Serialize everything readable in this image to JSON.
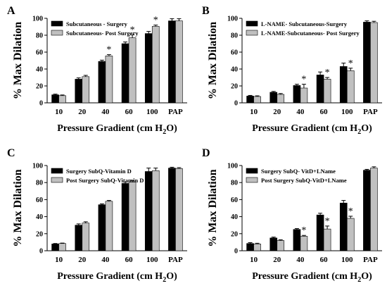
{
  "chart_data": [
    {
      "panel": "A",
      "type": "bar",
      "categories": [
        "10",
        "20",
        "40",
        "60",
        "100",
        "PAP"
      ],
      "xlabel_main": "Pressure Gradient (cm H",
      "xlabel_sub": "2",
      "xlabel_end": "O)",
      "ylabel": "% Max Dilation",
      "ylim": [
        0,
        100
      ],
      "yticks": [
        "0",
        "20",
        "40",
        "60",
        "80",
        "100"
      ],
      "series": [
        {
          "name": "Subcutaneous - Surgery",
          "values": [
            9.5,
            28,
            49,
            70,
            82,
            97
          ],
          "errors": [
            0.8,
            1.5,
            1.5,
            2,
            2.5,
            2.5
          ]
        },
        {
          "name": "Subcutaneous- Post Surgery",
          "values": [
            8.5,
            31,
            55.5,
            77,
            90.5,
            97
          ],
          "errors": [
            0.8,
            1.5,
            1.5,
            3.5,
            1.5,
            2.5
          ]
        }
      ],
      "annotations": [
        "",
        "",
        "*",
        "*",
        "*",
        ""
      ],
      "legend": "top-left"
    },
    {
      "panel": "B",
      "type": "bar",
      "categories": [
        "10",
        "20",
        "40",
        "60",
        "100",
        "PAP"
      ],
      "xlabel_main": "Pressure Gradient (cm H",
      "xlabel_sub": "2",
      "xlabel_end": "O)",
      "ylabel": "% Max Dilation",
      "ylim": [
        0,
        100
      ],
      "yticks": [
        "0",
        "20",
        "40",
        "60",
        "80",
        "100"
      ],
      "series": [
        {
          "name": "L-NAME- Subcutaneous-Surgery",
          "values": [
            8,
            12.5,
            20.5,
            33,
            43,
            95.5
          ],
          "errors": [
            0.8,
            1,
            1.5,
            3.5,
            4,
            1.5
          ]
        },
        {
          "name": "L-NAME-Subcutaneous- Post Surgery",
          "values": [
            7.5,
            10,
            17.5,
            28,
            38,
            95
          ],
          "errors": [
            0.8,
            1,
            4.5,
            2,
            3,
            1.5
          ]
        }
      ],
      "annotations": [
        "",
        "",
        "*",
        "*",
        "*",
        ""
      ],
      "legend": "top-left"
    },
    {
      "panel": "C",
      "type": "bar",
      "categories": [
        "10",
        "20",
        "40",
        "60",
        "100",
        "PAP"
      ],
      "xlabel_main": "Pressure Gradient (cm H",
      "xlabel_sub": "2",
      "xlabel_end": "O)",
      "ylabel": "% Max Dilation",
      "ylim": [
        0,
        100
      ],
      "yticks": [
        "0",
        "20",
        "40",
        "60",
        "80",
        "100"
      ],
      "series": [
        {
          "name": "Surgery SubQ-Vitamin D",
          "values": [
            8,
            30,
            54,
            79,
            93,
            97
          ],
          "errors": [
            0.5,
            1.5,
            1,
            1.5,
            4,
            1
          ]
        },
        {
          "name": "Post Surgery SubQ-Vitamin D",
          "values": [
            8.5,
            32.5,
            58,
            81,
            94,
            96.5
          ],
          "errors": [
            0.5,
            1.5,
            1,
            1.5,
            3,
            1
          ]
        }
      ],
      "annotations": [
        "",
        "",
        "",
        "",
        "",
        ""
      ],
      "legend": "top-left"
    },
    {
      "panel": "D",
      "type": "bar",
      "categories": [
        "10",
        "20",
        "40",
        "60",
        "100",
        "PAP"
      ],
      "xlabel_main": "Pressure Gradient (cm H",
      "xlabel_sub": "2",
      "xlabel_end": "O)",
      "ylabel": "% Max Dilation",
      "ylim": [
        0,
        100
      ],
      "yticks": [
        "0",
        "20",
        "40",
        "60",
        "80",
        "100"
      ],
      "series": [
        {
          "name": "Surgery SubQ- VitD+LName",
          "values": [
            8.5,
            15,
            25,
            42,
            56,
            94.5
          ],
          "errors": [
            1,
            1,
            1,
            2,
            3,
            1
          ]
        },
        {
          "name": "Post Surgery SubQ-VitD+LName",
          "values": [
            8,
            12,
            17,
            25.5,
            38,
            97
          ],
          "errors": [
            0.8,
            0.8,
            1,
            3.5,
            2.5,
            1.5
          ]
        }
      ],
      "annotations": [
        "",
        "",
        "*",
        "*",
        "*",
        ""
      ],
      "legend": "top-left"
    }
  ],
  "colors": {
    "surgery": "#000000",
    "post_surgery": "#c0c0c0"
  }
}
